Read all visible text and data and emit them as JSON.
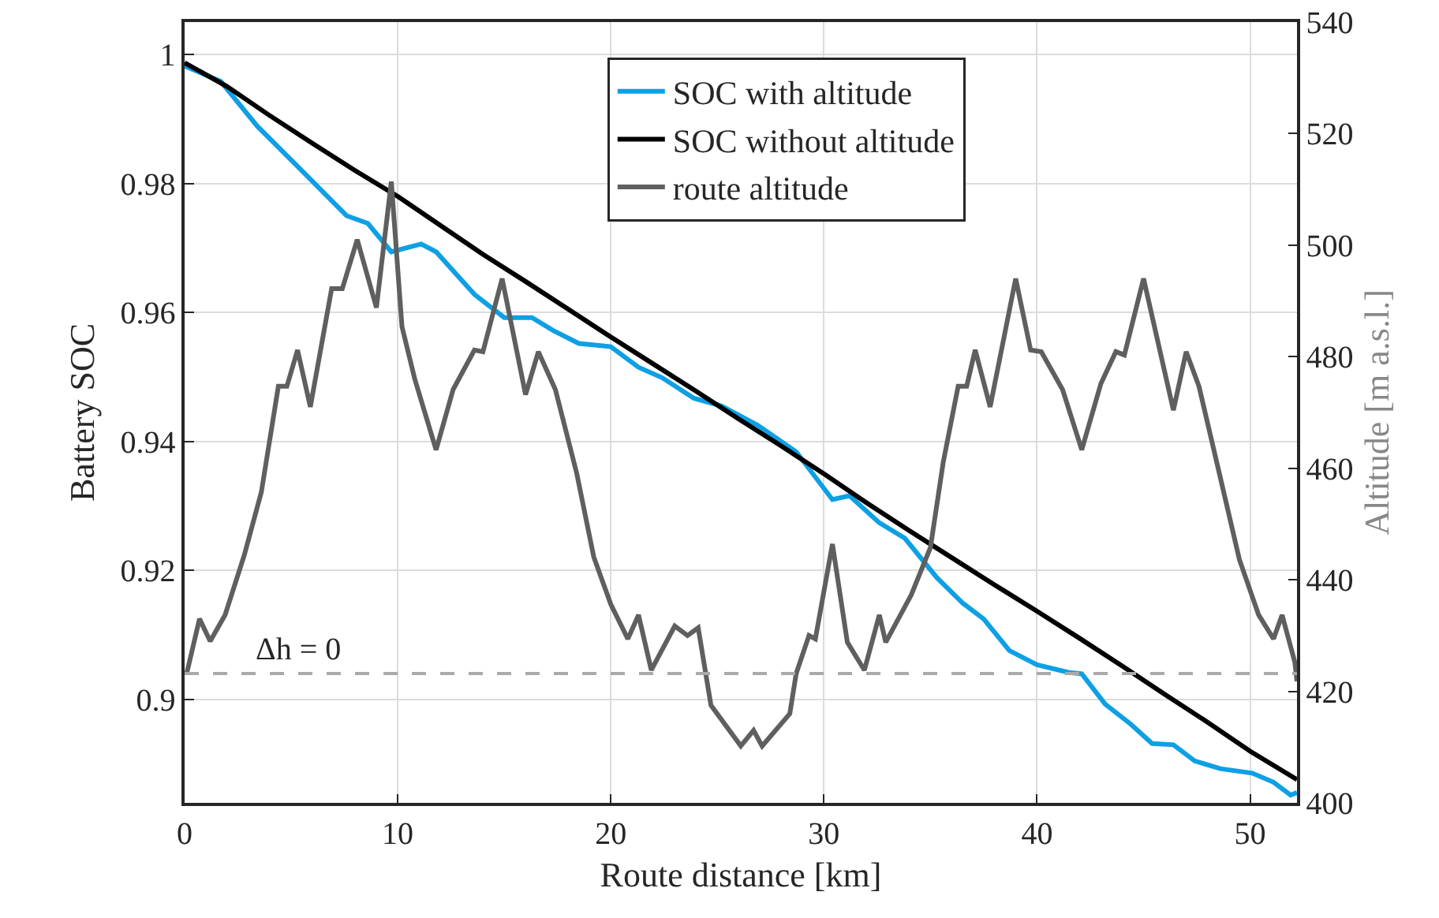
{
  "chart_data": {
    "type": "line",
    "xlabel": "Route distance [km]",
    "ylabel": "Battery SOC",
    "y2label": "Altitude [m a.s.l.]",
    "xlim": [
      0,
      52.2
    ],
    "xticks": [
      0,
      10,
      20,
      30,
      40,
      50
    ],
    "ylim": [
      0.884,
      1.005
    ],
    "yticks": [
      {
        "value": 0.9,
        "label": "0.9"
      },
      0.92,
      0.94,
      0.96,
      0.98,
      1
    ],
    "y2lim": [
      400,
      540
    ],
    "y2ticks": [
      400,
      420,
      440,
      460,
      480,
      500,
      520,
      540
    ],
    "grid": true,
    "legend": "top right",
    "line_style": "solid",
    "marker": "none",
    "ref_lines": [
      {
        "axis": "y2",
        "value": 423.2,
        "color": "#aaaaaa",
        "line_style": "dashed"
      }
    ],
    "annotations": [
      {
        "text": "Δh = 0",
        "x": 5.3,
        "y": 0.9041
      }
    ],
    "series": [
      {
        "name": "SOC with altitude",
        "color": "#0ea0e4",
        "x": [
          0,
          1.7,
          3.4,
          5.4,
          7.6,
          8.6,
          9.7,
          11.1,
          11.8,
          13.6,
          15.0,
          16.3,
          17.3,
          18.5,
          20.0,
          21.3,
          22.4,
          23.9,
          25.2,
          26.9,
          28.7,
          30.4,
          31.2,
          32.6,
          33.8,
          35.3,
          36.5,
          37.5,
          38.7,
          40.0,
          41.5,
          42.1,
          43.2,
          44.4,
          45.4,
          46.4,
          47.4,
          48.6,
          50.1,
          51.1,
          51.9,
          52.2
        ],
        "values": [
          0.9982,
          0.9958,
          0.9889,
          0.9823,
          0.975,
          0.9738,
          0.9694,
          0.9706,
          0.9694,
          0.9628,
          0.9592,
          0.9592,
          0.9572,
          0.9552,
          0.9547,
          0.9515,
          0.9499,
          0.9467,
          0.9455,
          0.9425,
          0.9384,
          0.931,
          0.9316,
          0.9274,
          0.925,
          0.9189,
          0.915,
          0.9125,
          0.9076,
          0.9054,
          0.9042,
          0.904,
          0.8993,
          0.8962,
          0.8932,
          0.893,
          0.8905,
          0.8893,
          0.8886,
          0.8872,
          0.8852,
          0.8856
        ]
      },
      {
        "name": "SOC without altitude",
        "color": "#000000",
        "x": [
          0,
          2,
          4,
          6,
          8,
          10,
          12,
          14,
          16,
          18,
          20,
          22,
          24,
          26,
          28,
          30,
          32,
          34,
          36,
          38,
          40,
          42,
          44,
          46,
          48,
          50,
          52.2
        ],
        "values": [
          0.9987,
          0.995,
          0.9905,
          0.9862,
          0.982,
          0.978,
          0.9735,
          0.969,
          0.9648,
          0.9605,
          0.9562,
          0.952,
          0.9478,
          0.9435,
          0.9393,
          0.935,
          0.9305,
          0.9262,
          0.922,
          0.9178,
          0.9137,
          0.9095,
          0.9052,
          0.9008,
          0.8965,
          0.892,
          0.8876
        ]
      },
      {
        "name": "route altitude",
        "color": "#5f5f5f",
        "axis": "y2",
        "x": [
          0.1,
          0.7,
          1.2,
          1.9,
          2.8,
          3.6,
          4.4,
          4.8,
          5.3,
          5.9,
          6.9,
          7.4,
          8.1,
          9.0,
          9.7,
          10.2,
          10.8,
          11.8,
          12.6,
          13.6,
          14.0,
          14.9,
          16.0,
          16.6,
          17.4,
          18.4,
          19.2,
          20.0,
          20.8,
          21.3,
          21.9,
          23.0,
          23.6,
          24.1,
          24.7,
          26.1,
          26.7,
          27.1,
          28.4,
          28.7,
          29.3,
          29.6,
          30.4,
          31.1,
          31.9,
          32.6,
          32.9,
          34.1,
          35.0,
          35.6,
          36.3,
          36.7,
          37.1,
          37.8,
          39.0,
          39.7,
          40.2,
          41.2,
          42.1,
          43.0,
          43.7,
          44.1,
          45.0,
          46.4,
          47.0,
          47.6,
          48.5,
          49.5,
          50.4,
          51.1,
          51.5,
          52.1,
          52.2
        ],
        "values": [
          423.2,
          433,
          429,
          433.7,
          444.4,
          455.7,
          474.7,
          474.7,
          481.2,
          471,
          492.2,
          492.2,
          501,
          488.8,
          511.4,
          485.4,
          476,
          463.3,
          474.1,
          481.2,
          480.9,
          494,
          473.2,
          480.9,
          474.1,
          459.1,
          444.1,
          435.6,
          429.4,
          433.7,
          423.8,
          431.7,
          430,
          431.4,
          417.5,
          410.2,
          413,
          410.2,
          416,
          423.2,
          430,
          429.4,
          446.4,
          428.8,
          423.8,
          433.7,
          428.8,
          437.3,
          445.8,
          461.1,
          474.7,
          474.7,
          481.2,
          471,
          494,
          481.2,
          480.9,
          474.1,
          463.3,
          475.2,
          480.9,
          480.3,
          494,
          470.4,
          480.9,
          474.7,
          460,
          443.6,
          433.7,
          429.4,
          433.7,
          425.2,
          421.8
        ]
      }
    ]
  }
}
